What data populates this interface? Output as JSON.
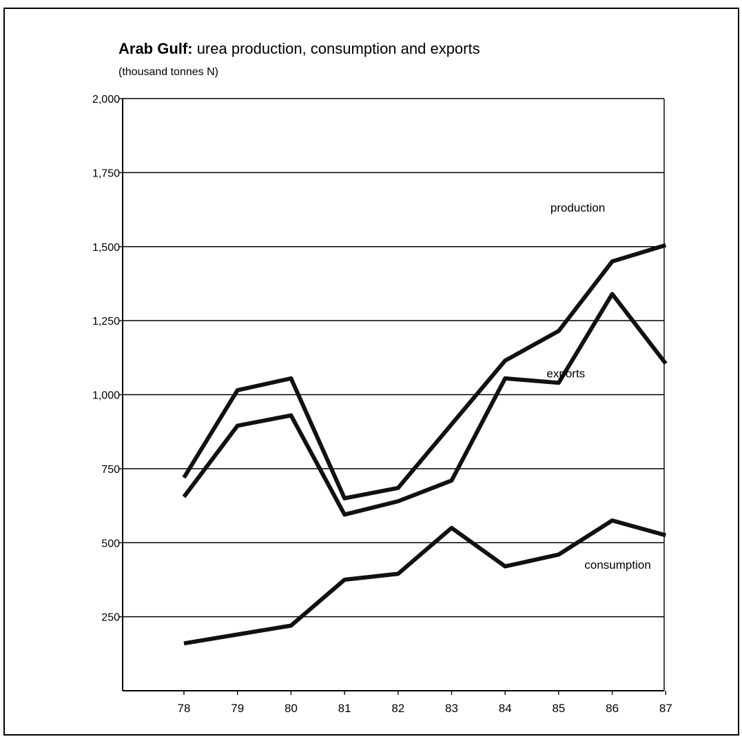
{
  "chart_data": {
    "type": "line",
    "title_bold": "Arab Gulf:",
    "title": "urea production, consumption and exports",
    "subtitle": "(thousand tonnes N)",
    "categories": [
      "78",
      "79",
      "80",
      "81",
      "82",
      "83",
      "84",
      "85",
      "86",
      "87"
    ],
    "y_ticks": [
      "2,000",
      "1,750",
      "1,500",
      "1,250",
      "1,000",
      "750",
      "500",
      "250"
    ],
    "ylim": [
      0,
      2000
    ],
    "grid": true,
    "series": [
      {
        "name": "production",
        "values": [
          720,
          1015,
          1055,
          650,
          685,
          900,
          1115,
          1215,
          1450,
          1505
        ]
      },
      {
        "name": "exports",
        "values": [
          655,
          895,
          930,
          595,
          640,
          710,
          1055,
          1040,
          1340,
          1105
        ]
      },
      {
        "name": "consumption",
        "values": [
          160,
          190,
          220,
          375,
          395,
          550,
          420,
          460,
          575,
          525
        ]
      }
    ],
    "colors": {
      "line": "#111111",
      "grid": "#000000",
      "background": "#ffffff"
    }
  }
}
